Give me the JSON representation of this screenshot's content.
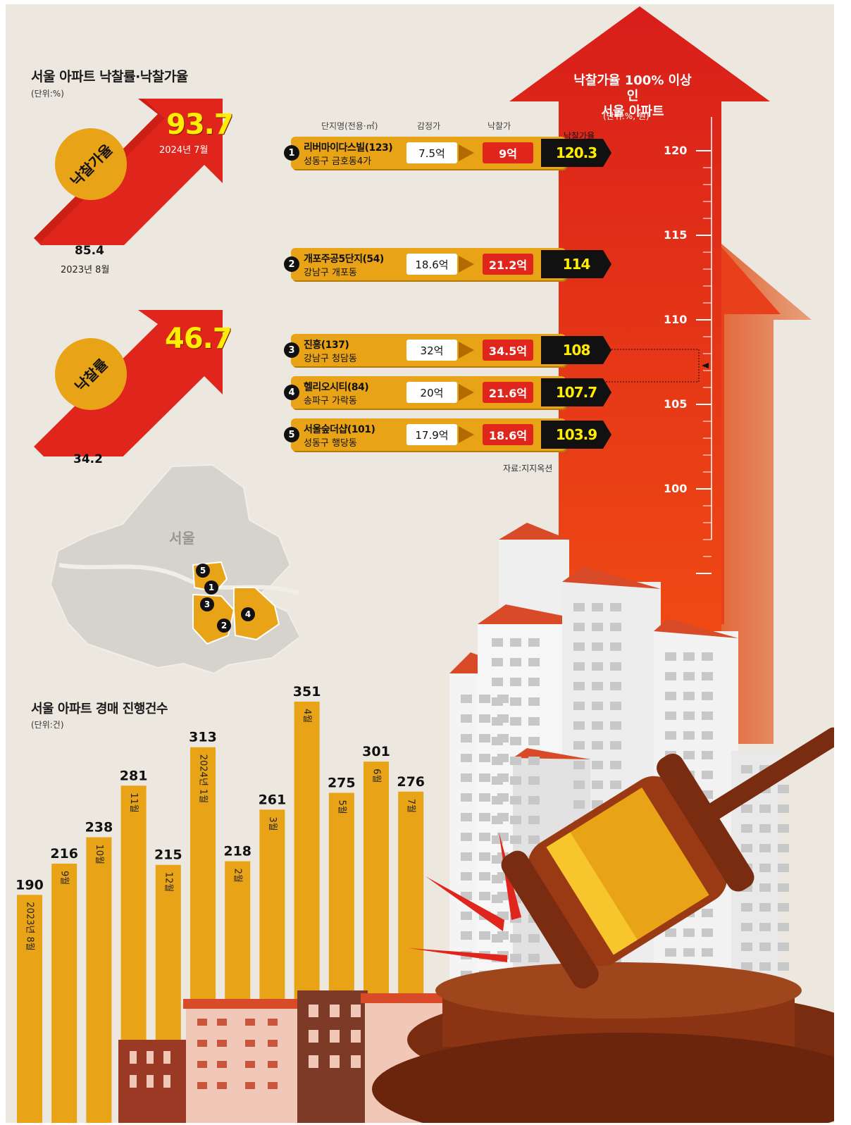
{
  "header": {
    "title": "서울 아파트 낙찰률·낙찰가율",
    "unit": "(단위:%)"
  },
  "ratio_block": {
    "label": "낙찰가율",
    "current_value": "93.7",
    "current_date": "2024년 7월",
    "previous_value": "85.4",
    "previous_date": "2023년 8월"
  },
  "rate_block": {
    "label": "낙찰률",
    "current_value": "46.7",
    "previous_value": "34.2"
  },
  "table": {
    "title_line1": "낙찰가율 100% 이상인",
    "title_line2": "서울 아파트",
    "unit": "(단위:%, 원)",
    "col_name": "단지명(전용·㎡)",
    "col_appraisal": "감정가",
    "col_sale": "낙찰가",
    "col_ratio": "낙찰가율",
    "source": "자료:지지옥션",
    "rows": [
      {
        "no": "1",
        "name": "리버마이다스빌(123)",
        "location": "성동구 금호동4가",
        "appraisal": "7.5억",
        "sale": "9억",
        "ratio": "120.3"
      },
      {
        "no": "2",
        "name": "개포주공5단지(54)",
        "location": "강남구 개포동",
        "appraisal": "18.6억",
        "sale": "21.2억",
        "ratio": "114"
      },
      {
        "no": "3",
        "name": "진흥(137)",
        "location": "강남구 청담동",
        "appraisal": "32억",
        "sale": "34.5억",
        "ratio": "108"
      },
      {
        "no": "4",
        "name": "헬리오시티(84)",
        "location": "송파구 가락동",
        "appraisal": "20억",
        "sale": "21.6억",
        "ratio": "107.7"
      },
      {
        "no": "5",
        "name": "서울숲더샵(101)",
        "location": "성동구 행당동",
        "appraisal": "17.9억",
        "sale": "18.6억",
        "ratio": "103.9"
      }
    ],
    "scale_ticks": [
      "120",
      "115",
      "110",
      "105",
      "100"
    ]
  },
  "map": {
    "label": "서울",
    "markers": [
      "5",
      "1",
      "3",
      "2",
      "4"
    ]
  },
  "bar_section": {
    "title": "서울 아파트 경매 진행건수",
    "unit": "(단위:건)"
  },
  "colors": {
    "background": "#ece8df",
    "bar": "#e8a317",
    "arrow_red": "#e0261c",
    "highlight": "#ffee00"
  },
  "chart_data": {
    "type": "bar",
    "title": "서울 아파트 경매 진행건수",
    "unit": "(단위:건)",
    "categories": [
      "2023년 8월",
      "9월",
      "10월",
      "11월",
      "12월",
      "2024년 1월",
      "2월",
      "3월",
      "4월",
      "5월",
      "6월",
      "7월"
    ],
    "values": [
      190,
      216,
      238,
      281,
      215,
      313,
      218,
      261,
      351,
      275,
      301,
      276
    ],
    "ylim": [
      0,
      351
    ]
  }
}
